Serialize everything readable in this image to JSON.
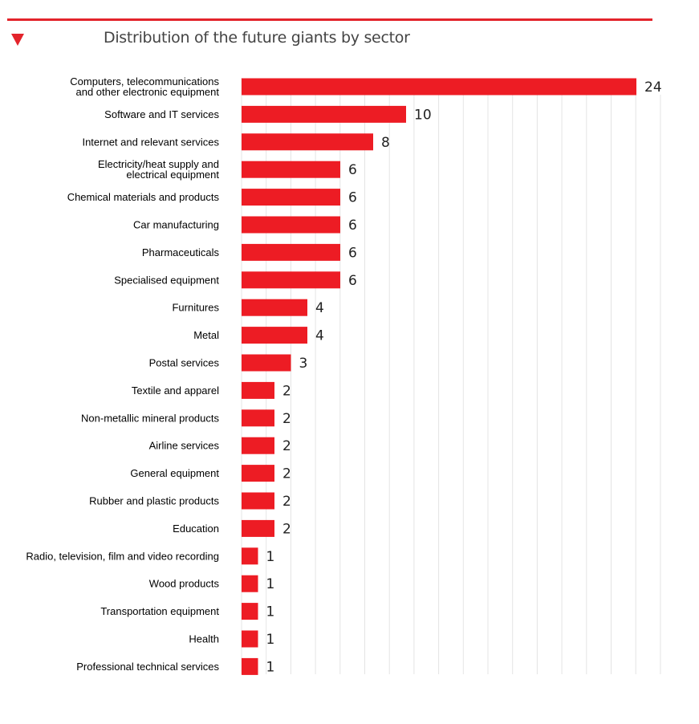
{
  "chart_data": {
    "type": "bar",
    "orientation": "horizontal",
    "title": "Distribution of the future giants by sector",
    "xlabel": "",
    "ylabel": "",
    "xlim": [
      0,
      25
    ],
    "grid": true,
    "bar_color": "#ed1c24",
    "accent_color": "#e3242b",
    "categories": [
      "Computers, telecommunications\nand other electronic equipment",
      "Software and IT services",
      "Internet and relevant services",
      "Electricity/heat supply and\nelectrical equipment",
      "Chemical materials and products",
      "Car manufacturing",
      "Pharmaceuticals",
      "Specialised equipment",
      "Furnitures",
      "Metal",
      "Postal services",
      "Textile and apparel",
      "Non-metallic mineral products",
      "Airline services",
      "General equipment",
      "Rubber and plastic products",
      "Education",
      "Radio, television, film and video recording",
      "Wood products",
      "Transportation equipment",
      "Health",
      "Professional technical services"
    ],
    "values": [
      24,
      10,
      8,
      6,
      6,
      6,
      6,
      6,
      4,
      4,
      3,
      2,
      2,
      2,
      2,
      2,
      2,
      1,
      1,
      1,
      1,
      1
    ]
  }
}
